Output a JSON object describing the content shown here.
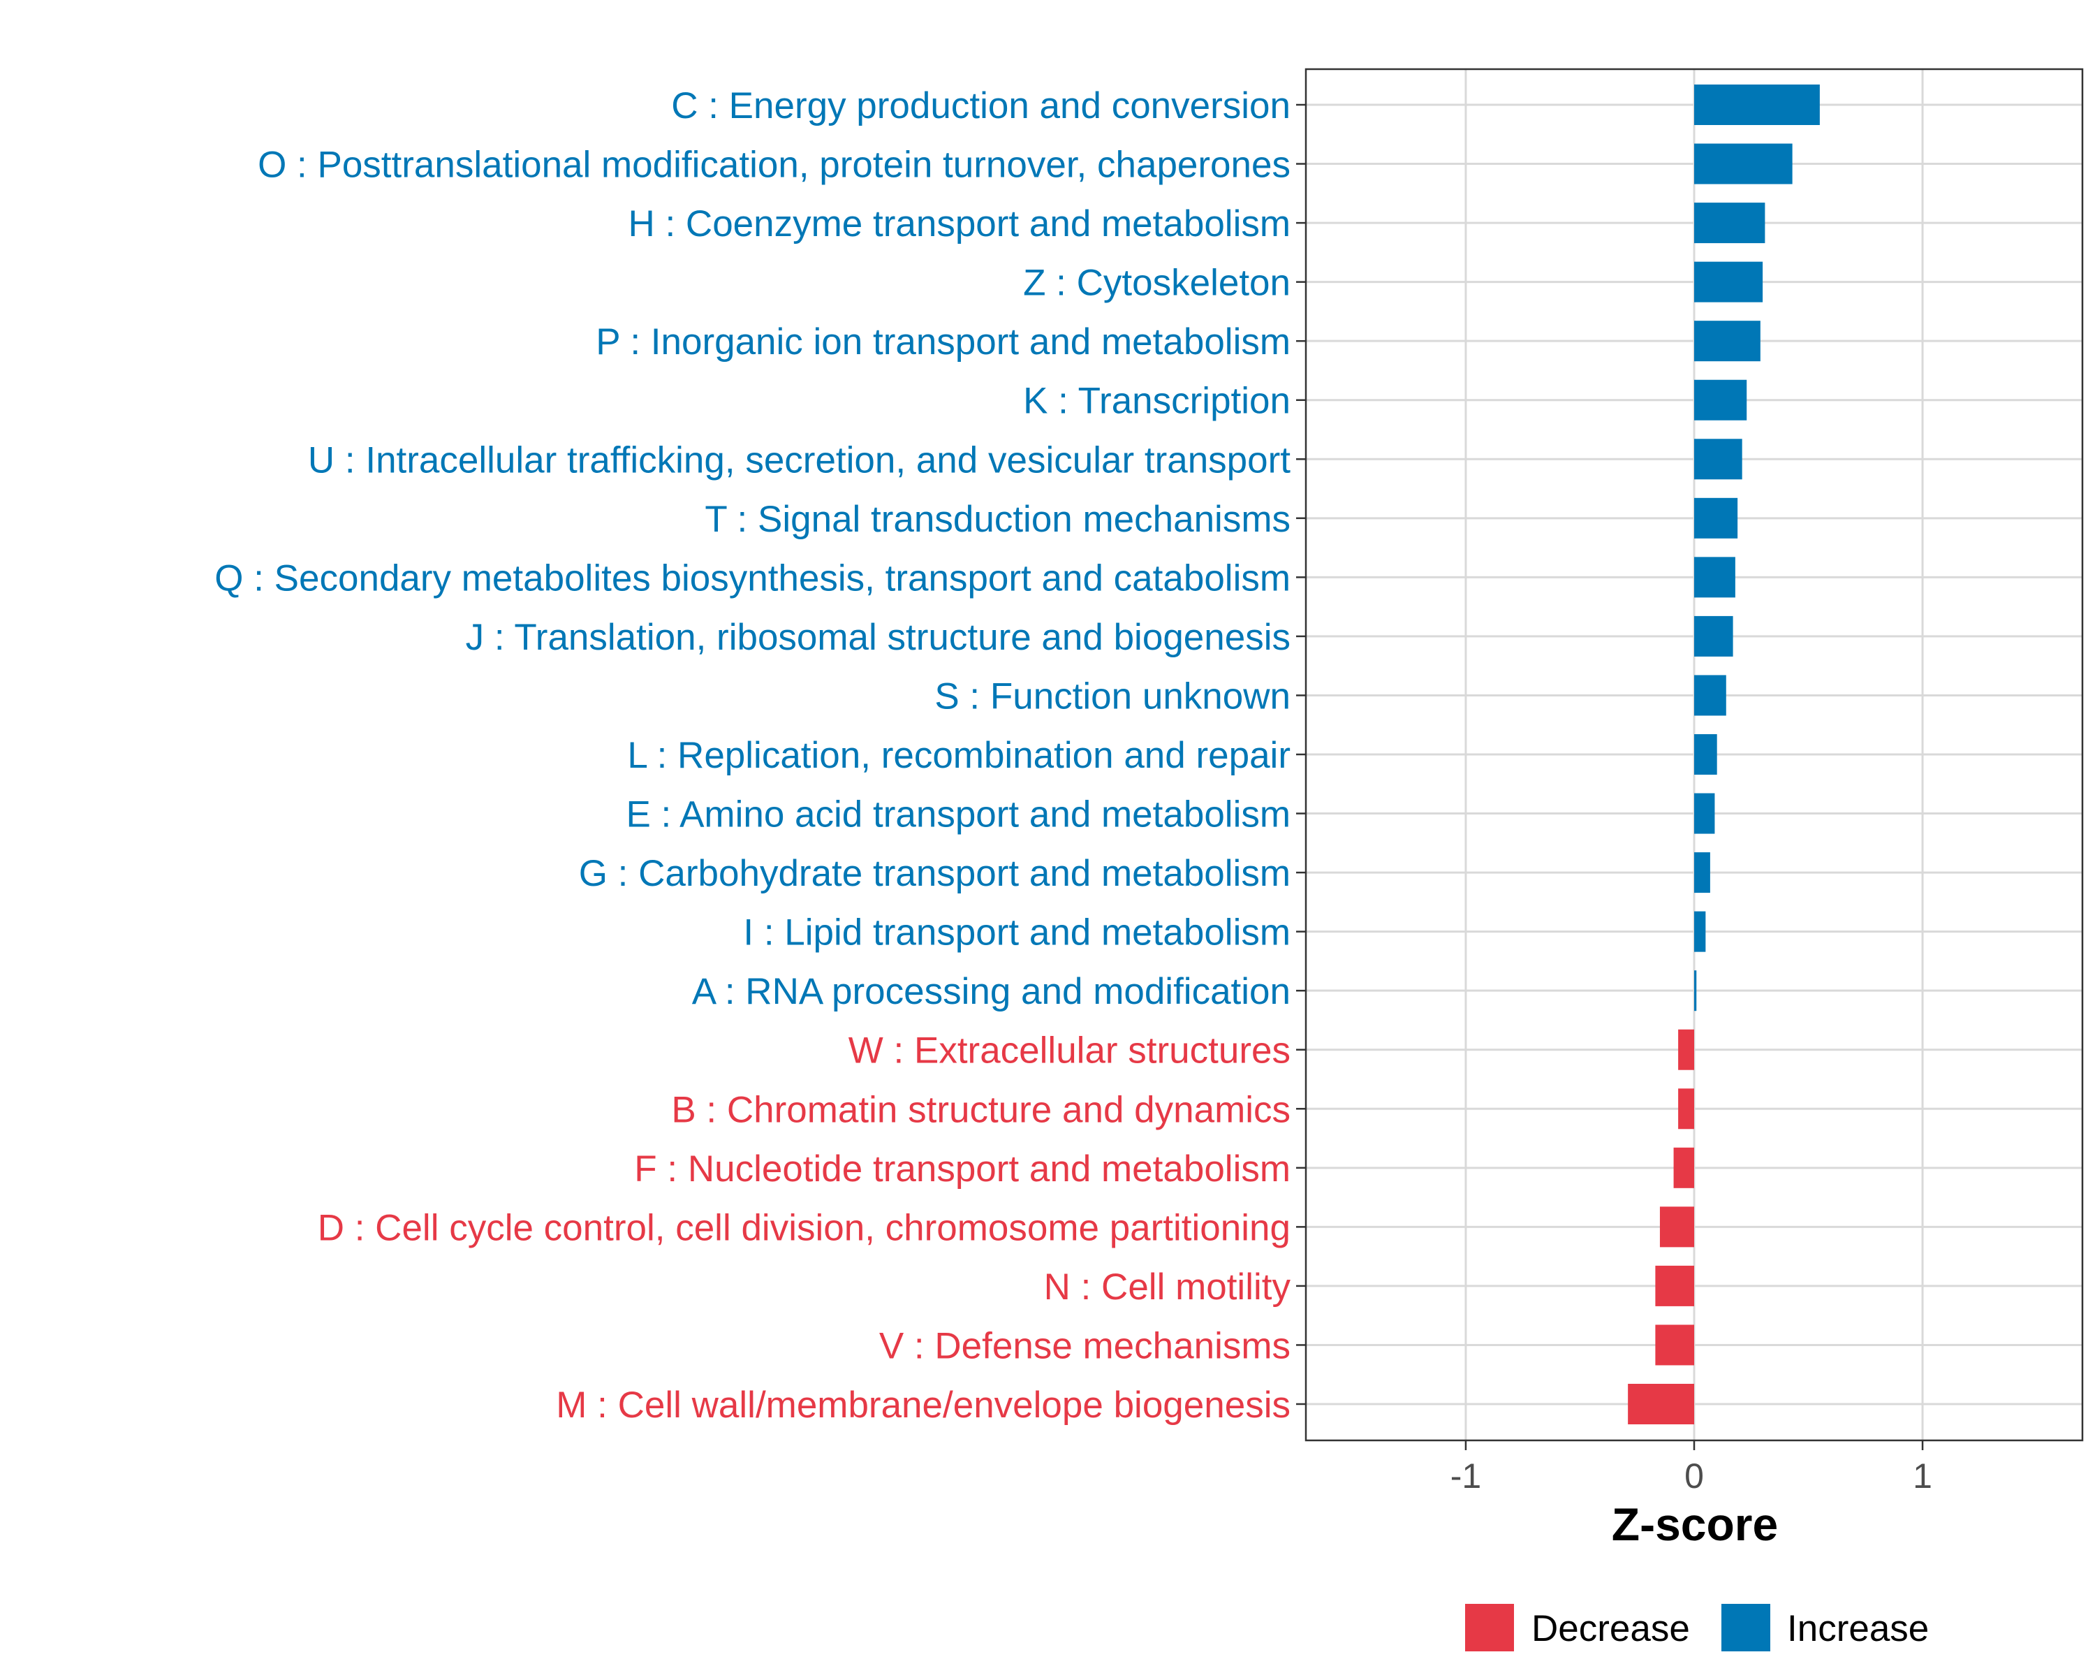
{
  "chart_data": {
    "type": "bar",
    "orientation": "horizontal",
    "xlabel": "Z-score",
    "ylabel": "",
    "xlim": [
      -1.7,
      1.7
    ],
    "xticks": [
      -1,
      0,
      1
    ],
    "grid": true,
    "legend_position": "bottom",
    "colors": {
      "Decrease": "#E63946",
      "Increase": "#0077B6"
    },
    "legend": [
      {
        "label": "Decrease",
        "color": "#E63946"
      },
      {
        "label": "Increase",
        "color": "#0077B6"
      }
    ],
    "categories": [
      "C : Energy production and conversion",
      "O : Posttranslational modification, protein turnover, chaperones",
      "H : Coenzyme transport and metabolism",
      "Z : Cytoskeleton",
      "P : Inorganic ion transport and metabolism",
      "K : Transcription",
      "U : Intracellular trafficking, secretion, and vesicular transport",
      "T : Signal transduction mechanisms",
      "Q : Secondary metabolites biosynthesis, transport and catabolism",
      "J : Translation, ribosomal structure and biogenesis",
      "S : Function unknown",
      "L : Replication, recombination and repair",
      "E : Amino acid transport and metabolism",
      "G : Carbohydrate transport and metabolism",
      "I : Lipid transport and metabolism",
      "A : RNA processing and modification",
      "W : Extracellular structures",
      "B : Chromatin structure and dynamics",
      "F : Nucleotide transport and metabolism",
      "D : Cell cycle control, cell division, chromosome partitioning",
      "N : Cell motility",
      "V : Defense mechanisms",
      "M : Cell wall/membrane/envelope biogenesis"
    ],
    "values": [
      0.55,
      0.43,
      0.31,
      0.3,
      0.29,
      0.23,
      0.21,
      0.19,
      0.18,
      0.17,
      0.14,
      0.1,
      0.09,
      0.07,
      0.05,
      0.01,
      -0.07,
      -0.07,
      -0.09,
      -0.15,
      -0.17,
      -0.17,
      -0.29
    ],
    "direction": [
      "Increase",
      "Increase",
      "Increase",
      "Increase",
      "Increase",
      "Increase",
      "Increase",
      "Increase",
      "Increase",
      "Increase",
      "Increase",
      "Increase",
      "Increase",
      "Increase",
      "Increase",
      "Increase",
      "Decrease",
      "Decrease",
      "Decrease",
      "Decrease",
      "Decrease",
      "Decrease",
      "Decrease"
    ]
  }
}
